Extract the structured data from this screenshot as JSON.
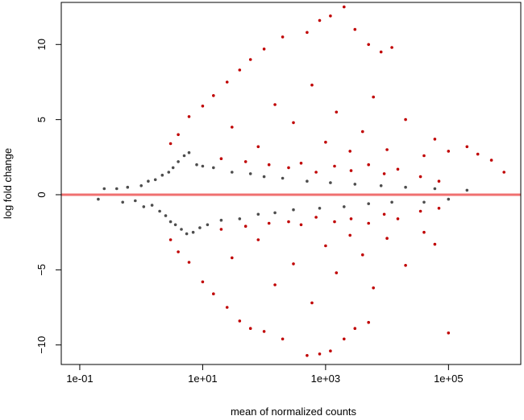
{
  "chart_data": {
    "type": "scatter",
    "title": "",
    "xlabel": "mean of normalized counts",
    "ylabel": "log fold change",
    "x_scale": "log10",
    "xlim": [
      0.05,
      1500000
    ],
    "ylim": [
      -11.3,
      12.8
    ],
    "x_ticks": [
      {
        "value": 0.1,
        "label": "1e-01"
      },
      {
        "value": 10,
        "label": "1e+01"
      },
      {
        "value": 1000,
        "label": "1e+03"
      },
      {
        "value": 100000,
        "label": "1e+05"
      }
    ],
    "y_ticks": [
      {
        "value": -10,
        "label": "−10"
      },
      {
        "value": -5,
        "label": "−5"
      },
      {
        "value": 0,
        "label": "0"
      },
      {
        "value": 5,
        "label": "5"
      },
      {
        "value": 10,
        "label": "10"
      }
    ],
    "grid": false,
    "legend": "none",
    "reference_line": {
      "y": 0,
      "color": "#f07070"
    },
    "series": [
      {
        "color": "#4d4d4d",
        "points": [
          [
            0.2,
            -0.3
          ],
          [
            0.25,
            0.4
          ],
          [
            0.4,
            0.4
          ],
          [
            0.5,
            -0.5
          ],
          [
            0.6,
            0.5
          ],
          [
            0.8,
            -0.4
          ],
          [
            1.0,
            0.6
          ],
          [
            1.1,
            -0.8
          ],
          [
            1.3,
            0.9
          ],
          [
            1.5,
            -0.7
          ],
          [
            1.7,
            1.0
          ],
          [
            2.0,
            -1.1
          ],
          [
            2.2,
            1.3
          ],
          [
            2.5,
            -1.4
          ],
          [
            2.8,
            1.5
          ],
          [
            3.0,
            -1.8
          ],
          [
            3.3,
            1.8
          ],
          [
            3.6,
            -2.0
          ],
          [
            4.0,
            2.2
          ],
          [
            4.5,
            -2.3
          ],
          [
            5.0,
            2.6
          ],
          [
            5.5,
            -2.6
          ],
          [
            6.0,
            2.8
          ],
          [
            7.0,
            -2.5
          ],
          [
            8.0,
            2.0
          ],
          [
            9.0,
            -2.2
          ],
          [
            10,
            1.9
          ],
          [
            12,
            -2.0
          ],
          [
            15,
            1.8
          ],
          [
            20,
            -1.7
          ],
          [
            30,
            1.5
          ],
          [
            40,
            -1.6
          ],
          [
            60,
            1.4
          ],
          [
            80,
            -1.3
          ],
          [
            100,
            1.2
          ],
          [
            150,
            -1.2
          ],
          [
            200,
            1.1
          ],
          [
            300,
            -1.0
          ],
          [
            500,
            0.9
          ],
          [
            800,
            -0.9
          ],
          [
            1200,
            0.8
          ],
          [
            2000,
            -0.8
          ],
          [
            3000,
            0.7
          ],
          [
            5000,
            -0.6
          ],
          [
            8000,
            0.6
          ],
          [
            12000,
            -0.5
          ],
          [
            20000,
            0.5
          ],
          [
            40000,
            -0.5
          ],
          [
            60000,
            0.4
          ],
          [
            100000,
            -0.3
          ],
          [
            200000,
            0.3
          ]
        ]
      },
      {
        "color": "#c00000",
        "points": [
          [
            3,
            3.4
          ],
          [
            4,
            4.0
          ],
          [
            6,
            5.2
          ],
          [
            10,
            5.9
          ],
          [
            15,
            6.6
          ],
          [
            25,
            7.5
          ],
          [
            40,
            8.3
          ],
          [
            60,
            9.0
          ],
          [
            100,
            9.7
          ],
          [
            200,
            10.5
          ],
          [
            500,
            10.8
          ],
          [
            800,
            11.6
          ],
          [
            1200,
            11.9
          ],
          [
            2000,
            12.5
          ],
          [
            3000,
            11.0
          ],
          [
            5000,
            10.0
          ],
          [
            8000,
            9.5
          ],
          [
            12000,
            9.8
          ],
          [
            30,
            4.5
          ],
          [
            80,
            3.2
          ],
          [
            150,
            6.0
          ],
          [
            300,
            4.8
          ],
          [
            600,
            7.3
          ],
          [
            1000,
            3.5
          ],
          [
            1500,
            5.5
          ],
          [
            2500,
            2.9
          ],
          [
            4000,
            4.2
          ],
          [
            6000,
            6.5
          ],
          [
            10000,
            3.0
          ],
          [
            20000,
            5.0
          ],
          [
            40000,
            2.6
          ],
          [
            60000,
            3.7
          ],
          [
            100000,
            2.9
          ],
          [
            200000,
            3.2
          ],
          [
            300000,
            2.7
          ],
          [
            500000,
            2.3
          ],
          [
            800000,
            1.5
          ],
          [
            20,
            2.4
          ],
          [
            50,
            2.2
          ],
          [
            120,
            2.0
          ],
          [
            250,
            1.8
          ],
          [
            400,
            2.1
          ],
          [
            700,
            1.5
          ],
          [
            1400,
            1.9
          ],
          [
            2600,
            1.6
          ],
          [
            5000,
            2.0
          ],
          [
            9000,
            1.4
          ],
          [
            15000,
            1.7
          ],
          [
            35000,
            1.2
          ],
          [
            70000,
            0.9
          ],
          [
            3,
            -3.0
          ],
          [
            4,
            -3.8
          ],
          [
            6,
            -4.5
          ],
          [
            10,
            -5.8
          ],
          [
            15,
            -6.6
          ],
          [
            25,
            -7.5
          ],
          [
            40,
            -8.4
          ],
          [
            60,
            -8.9
          ],
          [
            100,
            -9.1
          ],
          [
            200,
            -9.6
          ],
          [
            500,
            -10.7
          ],
          [
            800,
            -10.6
          ],
          [
            1200,
            -10.4
          ],
          [
            2000,
            -9.6
          ],
          [
            3000,
            -8.9
          ],
          [
            5000,
            -8.5
          ],
          [
            30,
            -4.2
          ],
          [
            80,
            -3.0
          ],
          [
            150,
            -6.0
          ],
          [
            300,
            -4.6
          ],
          [
            600,
            -7.2
          ],
          [
            1000,
            -3.4
          ],
          [
            1500,
            -5.2
          ],
          [
            2500,
            -2.7
          ],
          [
            4000,
            -4.0
          ],
          [
            6000,
            -6.2
          ],
          [
            10000,
            -2.9
          ],
          [
            20000,
            -4.7
          ],
          [
            40000,
            -2.5
          ],
          [
            60000,
            -3.3
          ],
          [
            100000,
            -9.2
          ],
          [
            20,
            -2.3
          ],
          [
            50,
            -2.1
          ],
          [
            120,
            -1.9
          ],
          [
            250,
            -1.8
          ],
          [
            400,
            -2.0
          ],
          [
            700,
            -1.5
          ],
          [
            1400,
            -1.8
          ],
          [
            2600,
            -1.6
          ],
          [
            5000,
            -1.9
          ],
          [
            9000,
            -1.3
          ],
          [
            15000,
            -1.6
          ],
          [
            35000,
            -1.1
          ],
          [
            70000,
            -0.9
          ]
        ]
      }
    ]
  }
}
